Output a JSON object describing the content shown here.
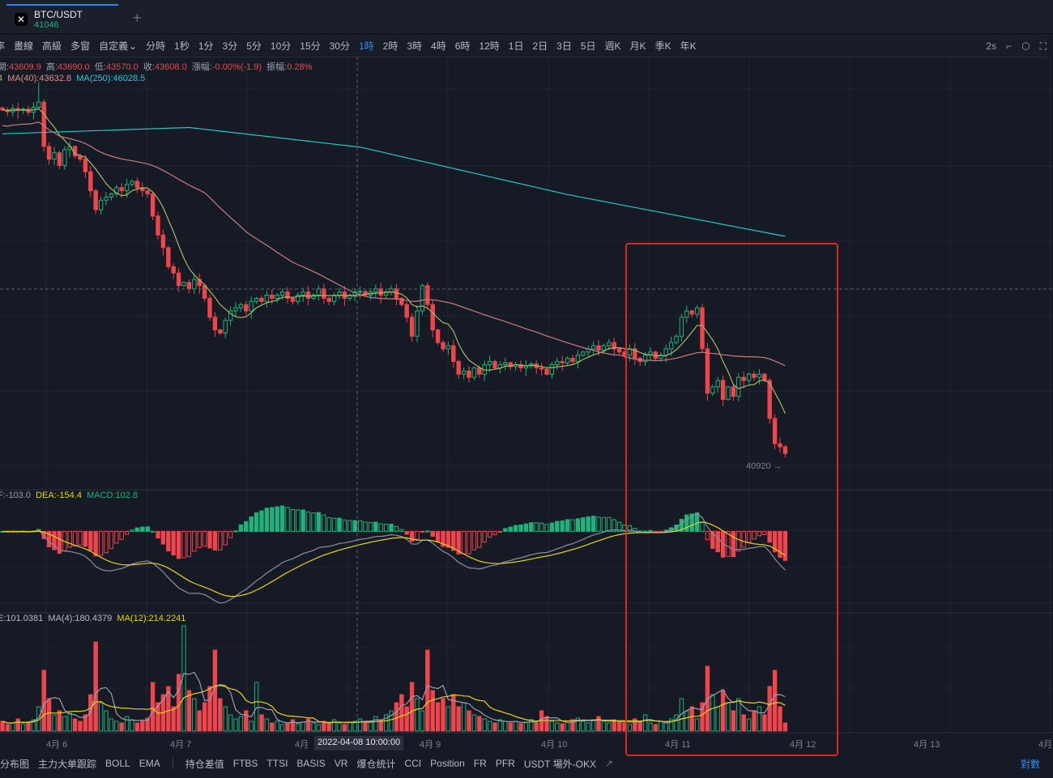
{
  "tab": {
    "symbol": "BTC/USDT",
    "price": "41046",
    "logo": "okx-logo",
    "add": "+"
  },
  "toolbar": {
    "items": [
      "率",
      "畫線",
      "高級",
      "多窗",
      "自定義",
      "分時",
      "1秒",
      "1分",
      "3分",
      "5分",
      "10分",
      "15分",
      "30分",
      "1時",
      "2時",
      "3時",
      "4時",
      "6時",
      "12時",
      "1日",
      "2日",
      "3日",
      "5日",
      "週K",
      "月K",
      "季K",
      "年K"
    ],
    "active": "1時",
    "refresh": "2s"
  },
  "info": {
    "open_l": "開:",
    "open": "43609.9",
    "high_l": "高:",
    "high": "43690.0",
    "low_l": "低:",
    "low": "43570.0",
    "close_l": "收:",
    "close": "43608.0",
    "chg_l": "漲幅:",
    "chg": "-0.00%(-1.9)",
    "amp_l": "振幅:",
    "amp": "0.28%",
    "ma_short": "4",
    "ma40": "MA(40):43632.8",
    "ma250": "MA(250):46028.5"
  },
  "macd_info": {
    "dif": "F:-103.0",
    "dea": "DEA:-154.4",
    "macd": "MACD:102.8"
  },
  "vol_info": {
    "vol": "E:101.0381",
    "ma4": "MA(4):180.4379",
    "ma12": "MA(12):214.2241"
  },
  "time_axis": [
    "4月 6",
    "4月 7",
    "4月",
    "4月 9",
    "4月 10",
    "4月 11",
    "4月 12",
    "4月 13",
    "4月"
  ],
  "crosshair_time": "2022-04-08 10:00:00",
  "low_marker": "40920 →",
  "bottom": {
    "items": [
      "分布图",
      "主力大单跟踪",
      "BOLL",
      "EMA"
    ],
    "items2": [
      "持仓差值",
      "FTBS",
      "TTSI",
      "BASIS",
      "VR",
      "爆仓统计",
      "CCI",
      "Position",
      "FR",
      "PFR",
      "USDT 場外-OKX"
    ],
    "log": "對數"
  },
  "colors": {
    "up": "#1fb27c",
    "down": "#f0454d",
    "ma_short": "#a5b866",
    "ma40": "#c77f7f",
    "ma250": "#1fc7c7",
    "highlight": "#e5261f",
    "accent": "#2f8cf8"
  },
  "chart_data": {
    "type": "candlestick",
    "interval": "1h",
    "close": [
      46480,
      46450,
      46500,
      46470,
      46490,
      46440,
      46520,
      46600,
      45900,
      45700,
      45800,
      45600,
      45850,
      45900,
      45750,
      45700,
      45500,
      45200,
      44900,
      45050,
      45100,
      45150,
      45250,
      45200,
      45300,
      45350,
      45250,
      45200,
      45150,
      44800,
      44500,
      44300,
      44000,
      43900,
      43700,
      43750,
      43650,
      43800,
      43700,
      43500,
      43200,
      43000,
      42950,
      43150,
      43300,
      43350,
      43400,
      43300,
      43450,
      43500,
      43450,
      43550,
      43500,
      43550,
      43600,
      43500,
      43450,
      43550,
      43600,
      43500,
      43550,
      43650,
      43500,
      43450,
      43550,
      43600,
      43500,
      43550,
      43600,
      43608,
      43550,
      43600,
      43650,
      43550,
      43600,
      43650,
      43500,
      43400,
      43200,
      42900,
      43300,
      43700,
      43400,
      43000,
      42800,
      42700,
      42750,
      42500,
      42300,
      42350,
      42250,
      42400,
      42300,
      42450,
      42500,
      42400,
      42450,
      42480,
      42420,
      42450,
      42400,
      42430,
      42460,
      42400,
      42380,
      42300,
      42450,
      42500,
      42480,
      42550,
      42500,
      42600,
      42650,
      42700,
      42750,
      42680,
      42750,
      42800,
      42700,
      42650,
      42600,
      42700,
      42550,
      42500,
      42600,
      42650,
      42550,
      42600,
      42700,
      42800,
      42900,
      43200,
      43300,
      43250,
      43350,
      42700,
      42000,
      42100,
      42200,
      41900,
      42100,
      41950,
      42250,
      42200,
      42300,
      42250,
      42300,
      42200,
      41600,
      41200,
      41150,
      41046
    ],
    "volume": [
      12,
      8,
      10,
      15,
      9,
      11,
      14,
      30,
      75,
      40,
      20,
      25,
      18,
      22,
      15,
      12,
      20,
      45,
      110,
      35,
      25,
      15,
      12,
      10,
      18,
      14,
      10,
      12,
      16,
      60,
      35,
      45,
      55,
      30,
      70,
      130,
      50,
      40,
      25,
      35,
      55,
      100,
      40,
      30,
      20,
      15,
      18,
      25,
      12,
      60,
      20,
      15,
      10,
      12,
      8,
      10,
      14,
      9,
      11,
      15,
      10,
      8,
      12,
      9,
      14,
      10,
      8,
      11,
      12,
      15,
      10,
      12,
      18,
      14,
      20,
      25,
      35,
      45,
      30,
      60,
      40,
      25,
      100,
      50,
      35,
      40,
      30,
      45,
      30,
      35,
      25,
      20,
      18,
      15,
      12,
      10,
      14,
      12,
      10,
      12,
      9,
      11,
      14,
      10,
      25,
      18,
      12,
      10,
      9,
      11,
      14,
      16,
      12,
      10,
      14,
      18,
      12,
      10,
      14,
      12,
      10,
      8,
      15,
      12,
      20,
      10,
      8,
      12,
      10,
      15,
      20,
      40,
      25,
      30,
      15,
      35,
      80,
      45,
      30,
      50,
      35,
      25,
      40,
      20,
      15,
      25,
      30,
      20,
      55,
      75,
      30,
      10
    ],
    "ma250": [
      [
        0,
        46100
      ],
      [
        36,
        46200
      ],
      [
        69,
        45890
      ],
      [
        109,
        45140
      ],
      [
        151,
        44480
      ]
    ],
    "indicators": [
      "MA(40)",
      "MA(250)",
      "MACD",
      "VOL MA(4)",
      "VOL MA(12)"
    ]
  }
}
